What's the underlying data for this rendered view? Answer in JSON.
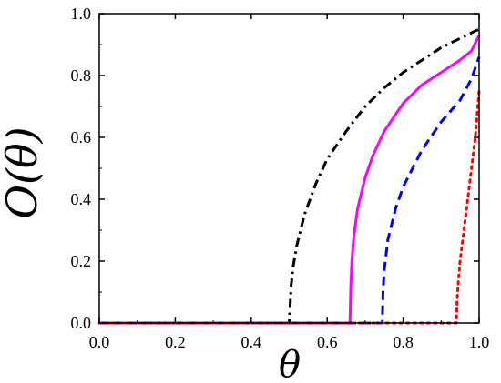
{
  "chart_data": {
    "type": "line",
    "xlabel": "θ",
    "ylabel": "O(θ)",
    "xlim": [
      0.0,
      1.0
    ],
    "ylim": [
      0.0,
      1.0
    ],
    "xticks": [
      "0.0",
      "0.2",
      "0.4",
      "0.6",
      "0.8",
      "1.0"
    ],
    "yticks": [
      "0.0",
      "0.2",
      "0.4",
      "0.6",
      "0.8",
      "1.0"
    ],
    "grid": false,
    "legend": false,
    "series": [
      {
        "color": "#000000",
        "style": "dash-dot",
        "x": [
          0.0,
          0.5,
          0.505,
          0.51,
          0.52,
          0.54,
          0.57,
          0.6,
          0.65,
          0.7,
          0.75,
          0.8,
          0.85,
          0.9,
          0.95,
          1.0
        ],
        "y": [
          0.0,
          0.0,
          0.12,
          0.18,
          0.25,
          0.35,
          0.45,
          0.53,
          0.62,
          0.7,
          0.76,
          0.81,
          0.85,
          0.89,
          0.92,
          0.95
        ]
      },
      {
        "color": "#ff00ff",
        "style": "solid",
        "x": [
          0.0,
          0.66,
          0.662,
          0.665,
          0.67,
          0.68,
          0.7,
          0.72,
          0.75,
          0.8,
          0.85,
          0.9,
          0.95,
          0.98,
          1.0
        ],
        "y": [
          0.0,
          0.0,
          0.12,
          0.2,
          0.28,
          0.37,
          0.47,
          0.54,
          0.62,
          0.71,
          0.77,
          0.81,
          0.85,
          0.88,
          0.93
        ]
      },
      {
        "color": "#0000ff",
        "style": "dashed",
        "x": [
          0.0,
          0.745,
          0.747,
          0.75,
          0.76,
          0.78,
          0.8,
          0.85,
          0.9,
          0.95,
          0.98,
          1.0
        ],
        "y": [
          0.0,
          0.0,
          0.1,
          0.17,
          0.27,
          0.37,
          0.44,
          0.56,
          0.65,
          0.72,
          0.79,
          0.86
        ]
      },
      {
        "color": "#ff0000",
        "style": "dotted",
        "x": [
          0.0,
          0.94,
          0.942,
          0.945,
          0.95,
          0.96,
          0.97,
          0.98,
          0.99,
          1.0
        ],
        "y": [
          0.0,
          0.0,
          0.07,
          0.13,
          0.2,
          0.3,
          0.4,
          0.5,
          0.6,
          0.75
        ]
      }
    ]
  }
}
